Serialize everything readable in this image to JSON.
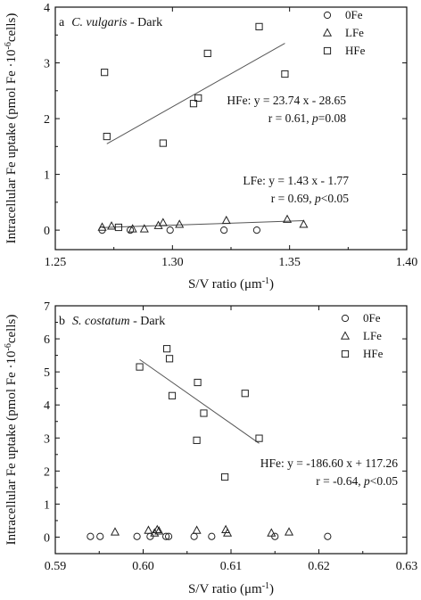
{
  "chart_data": [
    {
      "type": "scatter",
      "panel_letter": "a",
      "title_species": "C. vulgaris",
      "title_suffix": " - Dark",
      "xlabel": "S/V ratio (μm",
      "xlabel_sup": "-1",
      "xlabel_close": ")",
      "ylabel": "Intracellular Fe uptake (pmol Fe ·10",
      "ylabel_sup": "-6",
      "ylabel_tail": "cells)",
      "xlim": [
        1.25,
        1.4
      ],
      "ylim": [
        -0.35,
        4
      ],
      "x_ticks": [
        1.25,
        1.3,
        1.35,
        1.4
      ],
      "x_tick_labels": [
        "1.25",
        "1.30",
        "1.35",
        "1.40"
      ],
      "y_ticks": [
        0,
        1,
        2,
        3,
        4
      ],
      "y_tick_labels": [
        "0",
        "1",
        "2",
        "3",
        "4"
      ],
      "legend_position": "top-right",
      "series": [
        {
          "name": "0Fe",
          "marker": "circle",
          "points": [
            [
              1.27,
              0.0
            ],
            [
              1.282,
              0.0
            ],
            [
              1.299,
              0.0
            ],
            [
              1.322,
              0.0
            ],
            [
              1.336,
              0.0
            ]
          ]
        },
        {
          "name": "LFe",
          "marker": "triangle",
          "points": [
            [
              1.27,
              0.05
            ],
            [
              1.274,
              0.07
            ],
            [
              1.283,
              0.02
            ],
            [
              1.288,
              0.02
            ],
            [
              1.294,
              0.08
            ],
            [
              1.296,
              0.13
            ],
            [
              1.303,
              0.1
            ],
            [
              1.323,
              0.17
            ],
            [
              1.349,
              0.19
            ],
            [
              1.356,
              0.1
            ]
          ]
        },
        {
          "name": "HFe",
          "marker": "square",
          "points": [
            [
              1.277,
              0.05
            ],
            [
              1.271,
              2.83
            ],
            [
              1.272,
              1.68
            ],
            [
              1.296,
              1.56
            ],
            [
              1.309,
              2.27
            ],
            [
              1.311,
              2.37
            ],
            [
              1.315,
              3.17
            ],
            [
              1.337,
              3.65
            ],
            [
              1.348,
              2.8
            ]
          ]
        }
      ],
      "fits": [
        {
          "series": "HFe",
          "x_range": [
            1.272,
            1.348
          ],
          "slope": 23.74,
          "intercept": -28.65,
          "equation": "HFe: y = 23.74 x - 28.65",
          "stats_prefix": "r = 0.61, ",
          "p_symbol": "p",
          "stats_suffix": "=0.08"
        },
        {
          "series": "LFe",
          "x_range": [
            1.27,
            1.356
          ],
          "slope": 1.43,
          "intercept": -1.77,
          "equation": "LFe: y = 1.43 x - 1.77",
          "stats_prefix": "r = 0.69, ",
          "p_symbol": "p",
          "stats_suffix": "<0.05"
        }
      ]
    },
    {
      "type": "scatter",
      "panel_letter": "b",
      "title_species": "S. costatum",
      "title_suffix": " - Dark",
      "xlabel": "S/V ratio (μm",
      "xlabel_sup": "-1",
      "xlabel_close": ")",
      "ylabel": "Intracellular Fe uptake (pmol Fe ·10",
      "ylabel_sup": "-6",
      "ylabel_tail": "cells)",
      "xlim": [
        0.59,
        0.63
      ],
      "ylim": [
        -0.5,
        7
      ],
      "x_ticks": [
        0.59,
        0.6,
        0.61,
        0.62,
        0.63
      ],
      "x_tick_labels": [
        "0.59",
        "0.60",
        "0.61",
        "0.62",
        "0.63"
      ],
      "y_ticks": [
        0,
        1,
        2,
        3,
        4,
        5,
        6,
        7
      ],
      "y_tick_labels": [
        "0",
        "1",
        "2",
        "3",
        "4",
        "5",
        "6",
        "7"
      ],
      "legend_position": "top-right",
      "series": [
        {
          "name": "0Fe",
          "marker": "circle",
          "points": [
            [
              0.594,
              0.02
            ],
            [
              0.5951,
              0.02
            ],
            [
              0.5993,
              0.02
            ],
            [
              0.6008,
              0.02
            ],
            [
              0.6026,
              0.02
            ],
            [
              0.6029,
              0.02
            ],
            [
              0.6058,
              0.02
            ],
            [
              0.6078,
              0.02
            ],
            [
              0.615,
              0.02
            ],
            [
              0.621,
              0.02
            ]
          ]
        },
        {
          "name": "LFe",
          "marker": "triangle",
          "points": [
            [
              0.5968,
              0.15
            ],
            [
              0.6006,
              0.2
            ],
            [
              0.6013,
              0.12
            ],
            [
              0.6016,
              0.22
            ],
            [
              0.6018,
              0.18
            ],
            [
              0.6061,
              0.2
            ],
            [
              0.6094,
              0.22
            ],
            [
              0.6096,
              0.12
            ],
            [
              0.6146,
              0.12
            ],
            [
              0.6166,
              0.15
            ]
          ]
        },
        {
          "name": "HFe",
          "marker": "square",
          "points": [
            [
              0.5996,
              5.15
            ],
            [
              0.6027,
              5.7
            ],
            [
              0.603,
              5.4
            ],
            [
              0.6033,
              4.28
            ],
            [
              0.6062,
              4.68
            ],
            [
              0.6061,
              2.93
            ],
            [
              0.6069,
              3.75
            ],
            [
              0.6093,
              1.82
            ],
            [
              0.6116,
              4.35
            ],
            [
              0.6132,
              2.99
            ]
          ]
        }
      ],
      "fits": [
        {
          "series": "HFe",
          "x_range": [
            0.5996,
            0.6132
          ],
          "slope": -186.6,
          "intercept": 117.26,
          "equation": "HFe: y = -186.60 x + 117.26",
          "stats_prefix": "r = -0.64, ",
          "p_symbol": "p",
          "stats_suffix": "<0.05"
        }
      ]
    }
  ]
}
